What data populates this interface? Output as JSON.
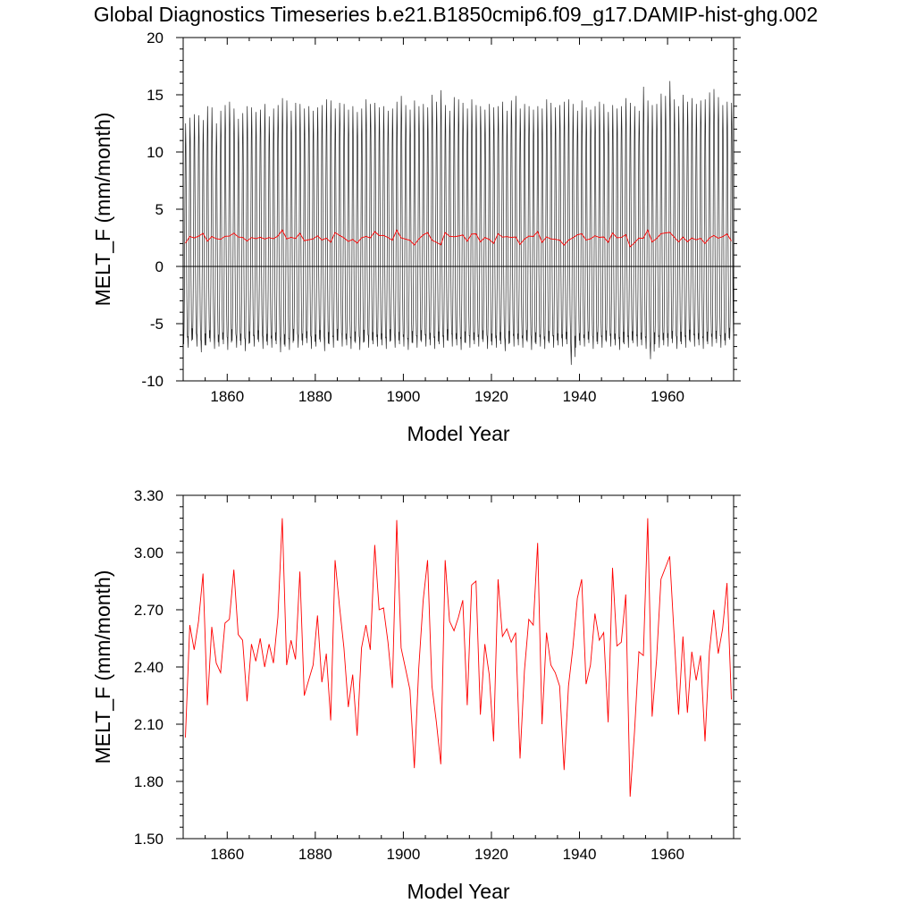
{
  "title": "Global Diagnostics Timeseries b.e21.B1850cmip6.f09_g17.DAMIP-hist-ghg.002",
  "colors": {
    "monthly": "#000000",
    "annual": "#ff0000",
    "axis": "#000000"
  },
  "chart_data": [
    {
      "type": "line",
      "panel": "top",
      "title": "Global Diagnostics Timeseries b.e21.B1850cmip6.f09_g17.DAMIP-hist-ghg.002",
      "xlabel": "Model Year",
      "ylabel": "MELT_F (mm/month)",
      "xlim": [
        1850,
        1975
      ],
      "ylim": [
        -10,
        20
      ],
      "xticks": [
        1860,
        1880,
        1900,
        1920,
        1940,
        1960
      ],
      "xtick_labels": [
        "1860",
        "1880",
        "1900",
        "1920",
        "1940",
        "1960"
      ],
      "yticks": [
        -10,
        -5,
        0,
        5,
        10,
        15,
        20
      ],
      "ytick_labels": [
        "-10",
        "-5",
        "0",
        "5",
        "10",
        "15",
        "20"
      ],
      "zero_line": 0,
      "grid": false,
      "monthly_series": {
        "start_year": 1850,
        "months_per_year": 12,
        "description_of_envelope": "monthly values oscillating each year between approx -7 and +13",
        "annual_max": [
          12.5,
          13.0,
          13.3,
          13.2,
          12.8,
          14.0,
          13.9,
          12.5,
          13.6,
          14.1,
          14.4,
          13.8,
          12.9,
          13.4,
          14.0,
          13.9,
          13.5,
          13.7,
          14.2,
          13.1,
          13.8,
          14.1,
          14.7,
          14.5,
          13.6,
          14.3,
          14.2,
          13.8,
          14.0,
          13.6,
          13.9,
          14.1,
          14.6,
          14.5,
          13.8,
          14.3,
          14.2,
          13.7,
          14.0,
          13.5,
          13.8,
          14.6,
          14.2,
          14.3,
          13.9,
          14.0,
          13.6,
          13.8,
          14.4,
          14.9,
          14.1,
          13.7,
          14.5,
          14.0,
          14.2,
          13.9,
          15.0,
          14.4,
          15.4,
          14.1,
          13.6,
          14.8,
          14.6,
          14.3,
          13.8,
          14.6,
          14.1,
          14.0,
          13.7,
          14.2,
          13.9,
          14.0,
          14.4,
          13.6,
          14.5,
          14.9,
          13.8,
          14.2,
          14.0,
          13.7,
          14.0,
          13.8,
          14.6,
          14.3,
          13.9,
          14.1,
          14.4,
          14.6,
          14.2,
          13.6,
          14.5,
          13.9,
          13.7,
          14.0,
          14.4,
          14.2,
          13.5,
          14.1,
          13.8,
          14.0,
          14.7,
          14.3,
          14.0,
          13.6,
          15.7,
          14.5,
          14.1,
          14.2,
          15.1,
          14.9,
          16.2,
          14.6,
          14.0,
          15.0,
          14.4,
          14.7,
          14.2,
          14.5,
          14.6,
          15.2,
          15.5,
          14.8,
          14.1,
          14.4,
          14.3
        ],
        "annual_min": [
          -6.8,
          -7.1,
          -6.4,
          -7.0,
          -7.5,
          -6.9,
          -6.6,
          -7.2,
          -7.0,
          -6.8,
          -7.3,
          -6.5,
          -7.1,
          -6.9,
          -7.4,
          -6.7,
          -7.0,
          -6.6,
          -7.2,
          -6.9,
          -7.1,
          -6.8,
          -7.5,
          -7.0,
          -7.3,
          -6.5,
          -7.1,
          -6.9,
          -6.7,
          -7.2,
          -7.0,
          -6.6,
          -7.4,
          -6.8,
          -7.1,
          -6.5,
          -7.0,
          -6.9,
          -7.2,
          -6.7,
          -7.3,
          -6.6,
          -7.1,
          -6.8,
          -7.0,
          -6.9,
          -7.2,
          -6.5,
          -7.1,
          -6.8,
          -7.0,
          -7.3,
          -6.7,
          -7.1,
          -6.6,
          -7.0,
          -6.9,
          -7.2,
          -6.8,
          -7.1,
          -6.5,
          -7.0,
          -6.9,
          -7.3,
          -6.7,
          -7.1,
          -6.8,
          -7.0,
          -6.6,
          -7.2,
          -6.9,
          -7.1,
          -6.8,
          -7.4,
          -6.7,
          -7.0,
          -6.9,
          -7.1,
          -6.6,
          -7.3,
          -6.8,
          -7.0,
          -7.2,
          -6.7,
          -7.1,
          -6.9,
          -7.0,
          -6.8,
          -8.6,
          -7.1,
          -6.9,
          -7.0,
          -6.7,
          -7.2,
          -6.8,
          -7.1,
          -6.6,
          -7.0,
          -6.9,
          -7.3,
          -6.8,
          -7.1,
          -6.7,
          -7.0,
          -6.9,
          -7.2,
          -8.1,
          -6.8,
          -7.1,
          -6.9,
          -7.0,
          -6.7,
          -7.2,
          -6.8,
          -7.1,
          -6.6,
          -7.0,
          -6.9,
          -7.2,
          -6.8,
          -7.0,
          -6.7,
          -7.1,
          -6.9,
          -6.4
        ]
      },
      "annual_series_ref": "annual_mean"
    },
    {
      "type": "line",
      "panel": "bottom",
      "xlabel": "Model Year",
      "ylabel": "MELT_F (mm/month)",
      "xlim": [
        1850,
        1975
      ],
      "ylim": [
        1.5,
        3.3
      ],
      "xticks": [
        1860,
        1880,
        1900,
        1920,
        1940,
        1960
      ],
      "xtick_labels": [
        "1860",
        "1880",
        "1900",
        "1920",
        "1940",
        "1960"
      ],
      "yticks": [
        1.5,
        1.8,
        2.1,
        2.4,
        2.7,
        3.0,
        3.3
      ],
      "ytick_labels": [
        "1.50",
        "1.80",
        "2.10",
        "2.40",
        "2.70",
        "3.00",
        "3.30"
      ],
      "grid": false,
      "series": [
        {
          "x_start": 1850,
          "x_step": 1,
          "values": [
            2.03,
            2.62,
            2.49,
            2.64,
            2.89,
            2.2,
            2.61,
            2.42,
            2.37,
            2.63,
            2.65,
            2.91,
            2.57,
            2.54,
            2.22,
            2.52,
            2.43,
            2.55,
            2.4,
            2.52,
            2.42,
            2.66,
            3.18,
            2.41,
            2.54,
            2.44,
            2.9,
            2.25,
            2.33,
            2.41,
            2.67,
            2.32,
            2.47,
            2.12,
            2.96,
            2.72,
            2.5,
            2.19,
            2.36,
            2.04,
            2.5,
            2.62,
            2.49,
            3.04,
            2.7,
            2.71,
            2.53,
            2.29,
            3.17,
            2.5,
            2.39,
            2.28,
            1.87,
            2.39,
            2.75,
            2.96,
            2.3,
            2.11,
            1.89,
            2.96,
            2.64,
            2.59,
            2.66,
            2.75,
            2.2,
            2.83,
            2.85,
            2.15,
            2.52,
            2.36,
            2.01,
            2.86,
            2.56,
            2.6,
            2.53,
            2.58,
            1.92,
            2.38,
            2.65,
            2.62,
            3.05,
            2.1,
            2.58,
            2.41,
            2.37,
            2.3,
            1.86,
            2.3,
            2.5,
            2.76,
            2.86,
            2.31,
            2.41,
            2.68,
            2.54,
            2.58,
            2.11,
            2.92,
            2.51,
            2.53,
            2.78,
            1.72,
            2.06,
            2.48,
            2.46,
            3.18,
            2.14,
            2.44,
            2.86,
            2.92,
            2.98,
            2.56,
            2.15,
            2.56,
            2.16,
            2.48,
            2.33,
            2.46,
            2.01,
            2.48,
            2.7,
            2.47,
            2.6,
            2.84,
            2.23
          ]
        }
      ]
    }
  ]
}
